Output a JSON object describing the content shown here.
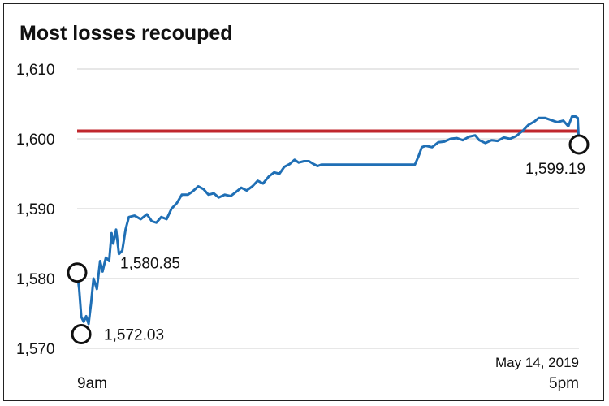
{
  "chart_data": {
    "type": "line",
    "title": "Most losses recouped",
    "xlabel": "",
    "ylabel": "",
    "x_tick_labels": [
      "9am",
      "5pm"
    ],
    "date_label": "May 14, 2019",
    "y_ticks": [
      1570,
      1580,
      1590,
      1600,
      1610
    ],
    "y_tick_labels": [
      "1,570",
      "1,580",
      "1,590",
      "1,600",
      "1,610"
    ],
    "ylim": [
      1570,
      1610
    ],
    "grid": true,
    "reference_line": {
      "value": 1601.1,
      "color": "#c0272d"
    },
    "series": [
      {
        "color": "#1f6fb5",
        "points": [
          [
            0.0,
            1580.85
          ],
          [
            0.5,
            1578.5
          ],
          [
            1.0,
            1574.5
          ],
          [
            1.6,
            1573.8
          ],
          [
            2.2,
            1574.6
          ],
          [
            2.8,
            1573.5
          ],
          [
            3.4,
            1576.5
          ],
          [
            4.0,
            1580.0
          ],
          [
            4.8,
            1578.5
          ],
          [
            5.6,
            1582.5
          ],
          [
            6.2,
            1581.0
          ],
          [
            7.0,
            1583.0
          ],
          [
            7.8,
            1582.5
          ],
          [
            8.4,
            1586.5
          ],
          [
            8.8,
            1585.0
          ],
          [
            9.5,
            1587.0
          ],
          [
            10.2,
            1583.5
          ],
          [
            11.0,
            1584.0
          ],
          [
            11.8,
            1587.0
          ],
          [
            12.6,
            1588.8
          ],
          [
            14.0,
            1589.0
          ],
          [
            15.5,
            1588.5
          ],
          [
            17.0,
            1589.2
          ],
          [
            18.2,
            1588.2
          ],
          [
            19.3,
            1588.0
          ],
          [
            20.5,
            1588.8
          ],
          [
            21.8,
            1588.5
          ],
          [
            23.0,
            1590.0
          ],
          [
            24.3,
            1590.8
          ],
          [
            25.5,
            1592.0
          ],
          [
            27.0,
            1592.0
          ],
          [
            28.2,
            1592.5
          ],
          [
            29.5,
            1593.2
          ],
          [
            30.8,
            1592.8
          ],
          [
            32.0,
            1592.0
          ],
          [
            33.3,
            1592.2
          ],
          [
            34.5,
            1591.6
          ],
          [
            36.0,
            1592.0
          ],
          [
            37.4,
            1591.8
          ],
          [
            38.7,
            1592.4
          ],
          [
            40.0,
            1593.0
          ],
          [
            41.3,
            1592.6
          ],
          [
            42.7,
            1593.2
          ],
          [
            44.0,
            1594.0
          ],
          [
            45.3,
            1593.6
          ],
          [
            46.7,
            1594.6
          ],
          [
            48.0,
            1595.2
          ],
          [
            49.3,
            1595.0
          ],
          [
            50.5,
            1596.0
          ],
          [
            51.8,
            1596.4
          ],
          [
            53.0,
            1597.0
          ],
          [
            54.0,
            1596.6
          ],
          [
            55.3,
            1596.8
          ],
          [
            56.5,
            1596.8
          ],
          [
            57.6,
            1596.4
          ],
          [
            58.6,
            1596.1
          ],
          [
            59.5,
            1596.3
          ],
          [
            59.8,
            1596.3
          ],
          [
            70.0,
            1596.3
          ],
          [
            80.0,
            1596.3
          ],
          [
            82.3,
            1596.3
          ],
          [
            83.2,
            1597.5
          ],
          [
            84.0,
            1598.8
          ],
          [
            85.0,
            1599.0
          ],
          [
            86.5,
            1598.8
          ],
          [
            88.0,
            1599.5
          ],
          [
            89.5,
            1599.6
          ],
          [
            91.0,
            1600.0
          ],
          [
            92.5,
            1600.1
          ],
          [
            94.0,
            1599.8
          ],
          [
            95.5,
            1600.3
          ],
          [
            97.0,
            1600.5
          ],
          [
            98.0,
            1599.8
          ],
          [
            99.5,
            1599.4
          ],
          [
            101.0,
            1599.8
          ],
          [
            102.5,
            1599.7
          ],
          [
            104.0,
            1600.2
          ],
          [
            105.5,
            1600.0
          ],
          [
            107.0,
            1600.4
          ],
          [
            108.5,
            1601.1
          ],
          [
            110.0,
            1602.0
          ],
          [
            111.5,
            1602.5
          ],
          [
            112.5,
            1603.0
          ],
          [
            114.0,
            1603.0
          ],
          [
            115.5,
            1602.7
          ],
          [
            117.0,
            1602.4
          ],
          [
            118.5,
            1602.6
          ],
          [
            119.7,
            1601.8
          ],
          [
            120.6,
            1603.2
          ],
          [
            121.5,
            1603.2
          ],
          [
            122.0,
            1603.0
          ],
          [
            122.3,
            1599.19
          ]
        ]
      }
    ],
    "annotations": [
      {
        "label": "1,580.85",
        "x": 0.0,
        "y": 1580.85,
        "label_side": "right-below"
      },
      {
        "label": "1,572.03",
        "x": 1.0,
        "y": 1572.03,
        "label_side": "right"
      },
      {
        "label": "1,599.19",
        "x": 122.3,
        "y": 1599.19,
        "label_side": "left-below"
      }
    ]
  }
}
